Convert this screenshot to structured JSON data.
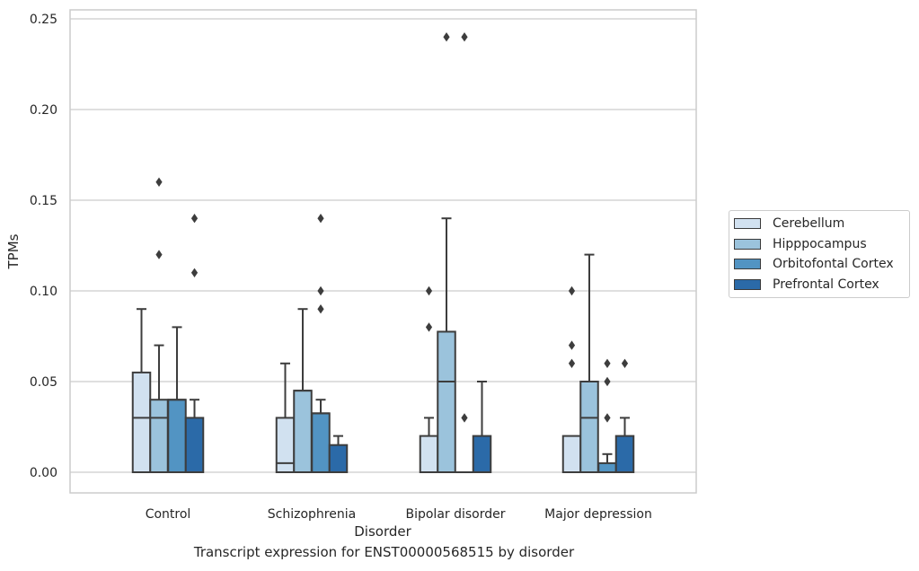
{
  "caption": "Transcript expression for ENST00000568515 by disorder",
  "chart_data": {
    "type": "box",
    "xlabel": "Disorder",
    "ylabel": "TPMs",
    "ylim": [
      -0.012,
      0.252
    ],
    "yticks": [
      "0.00",
      "0.05",
      "0.10",
      "0.15",
      "0.20",
      "0.25"
    ],
    "grid": "horizontal",
    "legend_position": "right",
    "categories": [
      "Control",
      "Schizophrenia",
      "Bipolar disorder",
      "Major depression"
    ],
    "series": [
      {
        "name": "Cerebellum",
        "color": "#d1e1f0",
        "boxes": [
          {
            "q1": 0.0,
            "median": 0.03,
            "q3": 0.055,
            "whisker_low": 0.0,
            "whisker_high": 0.09,
            "outliers": []
          },
          {
            "q1": 0.0,
            "median": 0.005,
            "q3": 0.03,
            "whisker_low": 0.0,
            "whisker_high": 0.06,
            "outliers": []
          },
          {
            "q1": 0.0,
            "median": 0.0,
            "q3": 0.02,
            "whisker_low": 0.0,
            "whisker_high": 0.03,
            "outliers": [
              0.08,
              0.1
            ]
          },
          {
            "q1": 0.0,
            "median": 0.0,
            "q3": 0.02,
            "whisker_low": 0.0,
            "whisker_high": 0.02,
            "outliers": [
              0.06,
              0.07,
              0.1
            ]
          }
        ]
      },
      {
        "name": "Hipppocampus",
        "color": "#9bc3dc",
        "boxes": [
          {
            "q1": 0.0,
            "median": 0.03,
            "q3": 0.04,
            "whisker_low": 0.0,
            "whisker_high": 0.07,
            "outliers": [
              0.12,
              0.16
            ]
          },
          {
            "q1": 0.0,
            "median": 0.045,
            "q3": 0.045,
            "whisker_low": 0.0,
            "whisker_high": 0.09,
            "outliers": []
          },
          {
            "q1": 0.0,
            "median": 0.05,
            "q3": 0.0775,
            "whisker_low": 0.0,
            "whisker_high": 0.14,
            "outliers": [
              0.24
            ]
          },
          {
            "q1": 0.0,
            "median": 0.03,
            "q3": 0.05,
            "whisker_low": 0.0,
            "whisker_high": 0.12,
            "outliers": []
          }
        ]
      },
      {
        "name": "Orbitofontal Cortex",
        "color": "#5294c3",
        "boxes": [
          {
            "q1": 0.0,
            "median": 0.04,
            "q3": 0.04,
            "whisker_low": 0.0,
            "whisker_high": 0.08,
            "outliers": []
          },
          {
            "q1": 0.0,
            "median": 0.0325,
            "q3": 0.0325,
            "whisker_low": 0.0,
            "whisker_high": 0.04,
            "outliers": [
              0.09,
              0.1,
              0.14
            ]
          },
          {
            "q1": 0.0,
            "median": 0.0,
            "q3": 0.0,
            "whisker_low": 0.0,
            "whisker_high": 0.0,
            "outliers": [
              0.03,
              0.24
            ]
          },
          {
            "q1": 0.0,
            "median": 0.0,
            "q3": 0.005,
            "whisker_low": 0.0,
            "whisker_high": 0.01,
            "outliers": [
              0.03,
              0.05,
              0.06
            ]
          }
        ]
      },
      {
        "name": "Prefrontal Cortex",
        "color": "#2b6aa8",
        "boxes": [
          {
            "q1": 0.0,
            "median": 0.0,
            "q3": 0.03,
            "whisker_low": 0.0,
            "whisker_high": 0.04,
            "outliers": [
              0.11,
              0.14
            ]
          },
          {
            "q1": 0.0,
            "median": 0.0,
            "q3": 0.015,
            "whisker_low": 0.0,
            "whisker_high": 0.02,
            "outliers": []
          },
          {
            "q1": 0.0,
            "median": 0.0,
            "q3": 0.02,
            "whisker_low": 0.0,
            "whisker_high": 0.05,
            "outliers": []
          },
          {
            "q1": 0.0,
            "median": 0.0,
            "q3": 0.02,
            "whisker_low": 0.0,
            "whisker_high": 0.03,
            "outliers": [
              0.06
            ]
          }
        ]
      }
    ]
  }
}
